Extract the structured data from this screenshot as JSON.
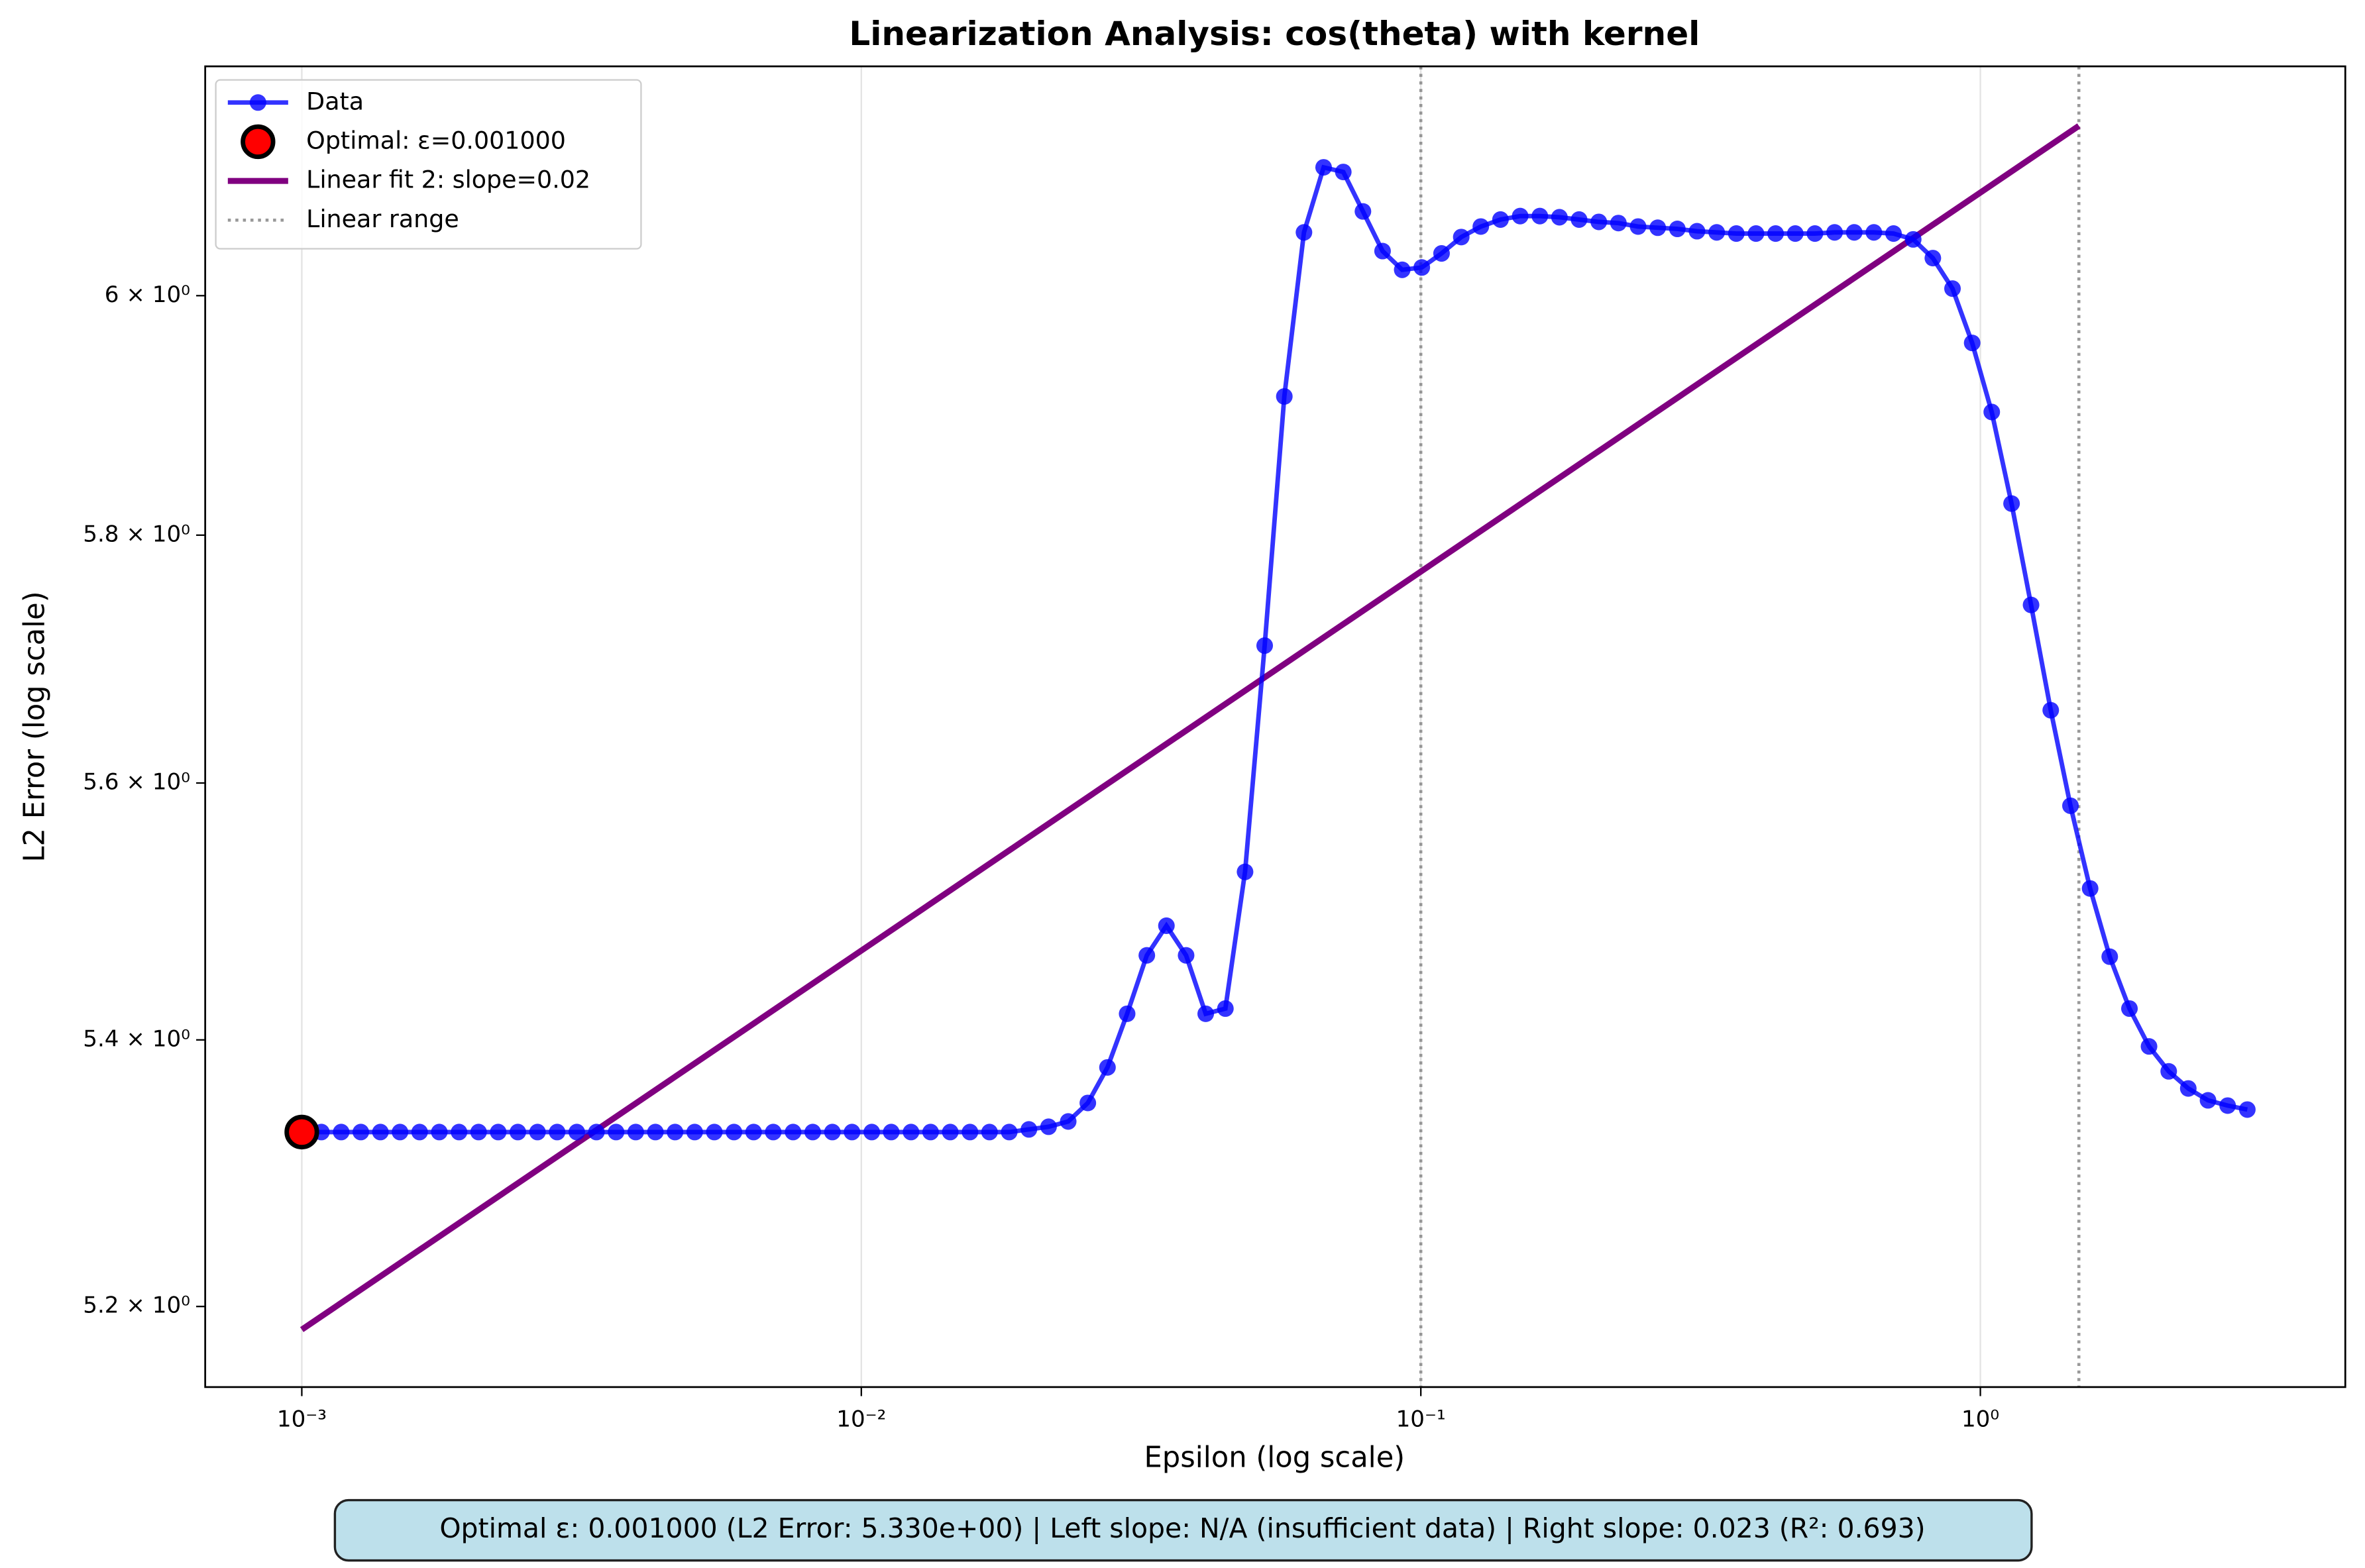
{
  "chart_data": {
    "type": "line",
    "title": "Linearization Analysis: cos(theta) with kernel",
    "xlabel": "Epsilon (log scale)",
    "ylabel": "L2 Error (log scale)",
    "xscale": "log",
    "yscale": "log",
    "xlim": [
      0.000672,
      4.49
    ],
    "ylim": [
      5.141,
      6.198
    ],
    "xticks": [
      {
        "value": 0.001,
        "label": "10⁻³"
      },
      {
        "value": 0.01,
        "label": "10⁻²"
      },
      {
        "value": 0.1,
        "label": "10⁻¹"
      },
      {
        "value": 1,
        "label": "10⁰"
      }
    ],
    "yticks": [
      {
        "value": 5.2,
        "label": "5.2 × 10⁰"
      },
      {
        "value": 5.4,
        "label": "5.4 × 10⁰"
      },
      {
        "value": 5.6,
        "label": "5.6 × 10⁰"
      },
      {
        "value": 5.8,
        "label": "5.8 × 10⁰"
      },
      {
        "value": 6,
        "label": "6 × 10⁰"
      }
    ],
    "grid": "x",
    "legend_loc": "upper left",
    "series": [
      {
        "name": "Data",
        "type": "line",
        "color": "#0000ff",
        "x": [
          0.001,
          0.001084,
          0.001176,
          0.001275,
          0.001382,
          0.001498,
          0.001624,
          0.001761,
          0.00191,
          0.00207,
          0.002244,
          0.002433,
          0.002638,
          0.00286,
          0.003101,
          0.003362,
          0.003645,
          0.003952,
          0.004285,
          0.004646,
          0.005037,
          0.005461,
          0.005921,
          0.00642,
          0.00696,
          0.007552,
          0.008188,
          0.008878,
          0.009625,
          0.01044,
          0.01131,
          0.01227,
          0.0133,
          0.01442,
          0.01564,
          0.01695,
          0.01838,
          0.01993,
          0.02161,
          0.02343,
          0.0254,
          0.02754,
          0.02986,
          0.03238,
          0.0351,
          0.03806,
          0.04126,
          0.04474,
          0.04851,
          0.05259,
          0.05702,
          0.06182,
          0.06703,
          0.07268,
          0.0788,
          0.08543,
          0.09262,
          0.1004,
          0.1089,
          0.1181,
          0.128,
          0.1388,
          0.1505,
          0.1632,
          0.1769,
          0.1918,
          0.208,
          0.2255,
          0.2445,
          0.2651,
          0.2874,
          0.3116,
          0.3379,
          0.3663,
          0.3972,
          0.4306,
          0.4669,
          0.5062,
          0.5489,
          0.5951,
          0.6452,
          0.6996,
          0.7586,
          0.8224,
          0.8917,
          0.9669,
          1.048,
          1.137,
          1.232,
          1.336,
          1.449,
          1.571,
          1.703,
          1.847,
          2.002,
          2.171,
          2.353,
          2.552,
          2.767,
          3.0
        ],
        "values": [
          5.33,
          5.33,
          5.33,
          5.33,
          5.33,
          5.33,
          5.33,
          5.33,
          5.33,
          5.33,
          5.33,
          5.33,
          5.33,
          5.33,
          5.33,
          5.33,
          5.33,
          5.33,
          5.33,
          5.33,
          5.33,
          5.33,
          5.33,
          5.33,
          5.33,
          5.33,
          5.33,
          5.33,
          5.33,
          5.33,
          5.33,
          5.33,
          5.33,
          5.33,
          5.33,
          5.33,
          5.33,
          5.332,
          5.334,
          5.338,
          5.352,
          5.379,
          5.42,
          5.465,
          5.488,
          5.465,
          5.42,
          5.424,
          5.53,
          5.71,
          5.915,
          6.054,
          6.11,
          6.106,
          6.072,
          6.038,
          6.022,
          6.024,
          6.036,
          6.05,
          6.059,
          6.065,
          6.068,
          6.068,
          6.067,
          6.065,
          6.063,
          6.062,
          6.059,
          6.058,
          6.057,
          6.055,
          6.054,
          6.053,
          6.053,
          6.053,
          6.053,
          6.053,
          6.054,
          6.054,
          6.054,
          6.053,
          6.048,
          6.032,
          6.006,
          5.96,
          5.902,
          5.826,
          5.743,
          5.658,
          5.582,
          5.517,
          5.464,
          5.424,
          5.395,
          5.376,
          5.363,
          5.354,
          5.35,
          5.347
        ]
      },
      {
        "name": "Optimal: ε=0.001000",
        "type": "scatter",
        "color": "#ff0000",
        "x": [
          0.001
        ],
        "values": [
          5.33
        ]
      },
      {
        "name": "Linear fit 2: slope=0.02",
        "type": "fit",
        "color": "#800080",
        "x": [
          0.001,
          1.5
        ],
        "values": [
          5.183,
          6.146
        ]
      },
      {
        "name": "Linear range",
        "type": "vline",
        "color": "#808080",
        "x": [
          0.1,
          1.5
        ]
      }
    ],
    "annotation": "Optimal ε: 0.001000 (L2 Error: 5.330e+00) | Left slope: N/A (insufficient data) | Right slope: 0.023 (R²: 0.693)"
  }
}
